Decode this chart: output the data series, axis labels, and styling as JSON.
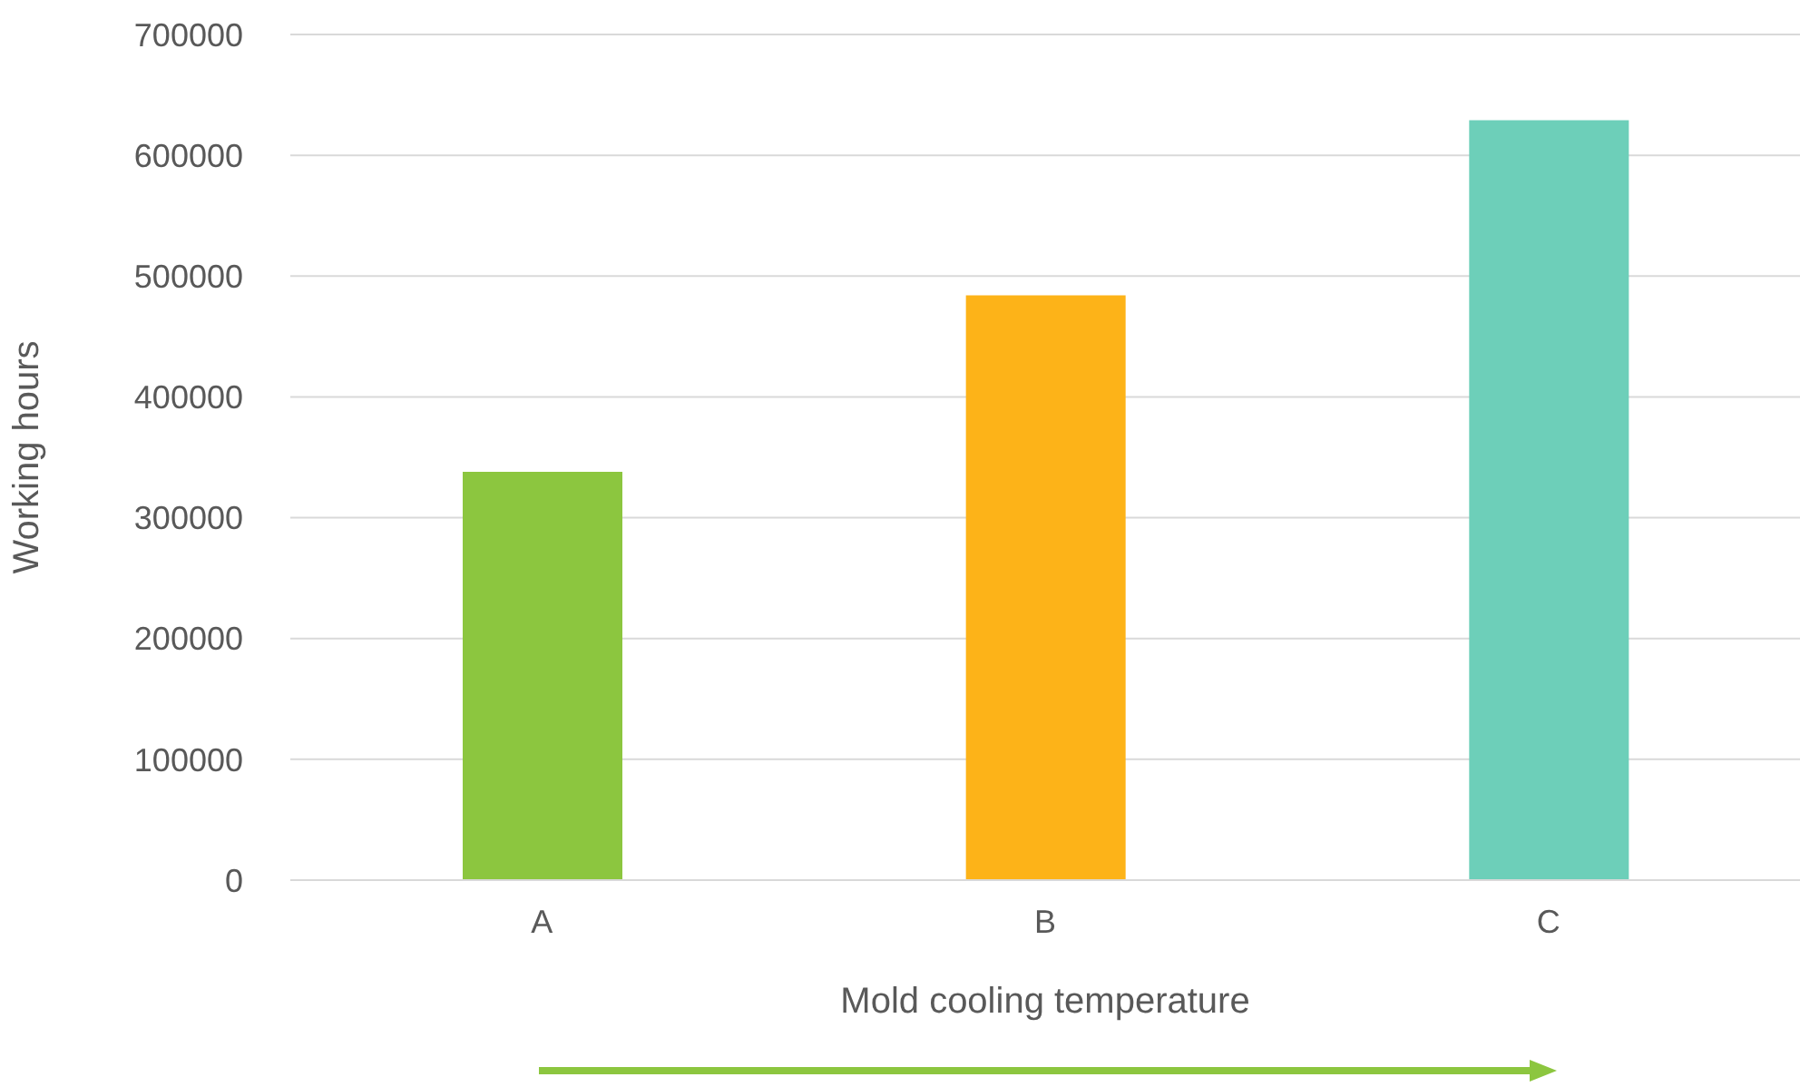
{
  "chart_data": {
    "type": "bar",
    "xlabel": "Mold cooling temperature",
    "ylabel": "Working hours",
    "categories": [
      "A",
      "B",
      "C"
    ],
    "values": [
      338000,
      484000,
      629000
    ],
    "colors": [
      "#8cc63f",
      "#fdb318",
      "#6dcfb9"
    ],
    "ylim": [
      0,
      700000
    ],
    "yticks": [
      0,
      100000,
      200000,
      300000,
      400000,
      500000,
      600000,
      700000
    ],
    "grid": "y"
  }
}
